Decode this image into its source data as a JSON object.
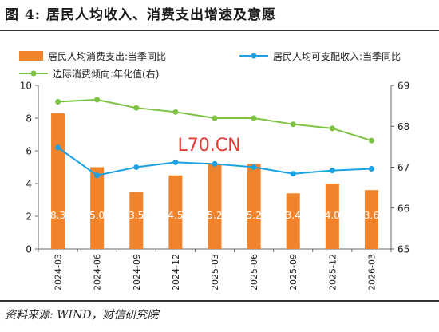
{
  "figure": {
    "title": "图 4:  居民人均收入、消费支出增速及意愿",
    "source": "资料来源: WIND，财信研究院",
    "watermark": "L70.CN"
  },
  "chart_data": {
    "type": "bar",
    "categories": [
      "2024-03",
      "2024-06",
      "2024-09",
      "2024-12",
      "2025-03",
      "2025-06",
      "2025-09",
      "2025-12",
      "2026-03"
    ],
    "series": [
      {
        "name": "居民人均消费支出:当季同比",
        "type": "bar",
        "axis": "left",
        "color": "#F0842C",
        "values": [
          8.3,
          5.0,
          3.5,
          4.5,
          5.2,
          5.2,
          3.4,
          4.0,
          3.6
        ],
        "labels": [
          "8.3",
          "5.0",
          "3.5",
          "4.5",
          "5.2",
          "5.2",
          "3.4",
          "4.0",
          "3.6"
        ]
      },
      {
        "name": "居民人均可支配收入:当季同比",
        "type": "line",
        "axis": "left",
        "color": "#1BA1E2",
        "values": [
          6.2,
          4.5,
          5.0,
          5.3,
          5.2,
          5.0,
          4.6,
          4.8,
          4.9
        ]
      },
      {
        "name": "边际消费倾向:年化值(右)",
        "type": "line",
        "axis": "right",
        "color": "#7DC242",
        "values": [
          68.6,
          68.65,
          68.45,
          68.35,
          68.2,
          68.2,
          68.05,
          67.95,
          67.65
        ]
      }
    ],
    "ylim_left": [
      0,
      10
    ],
    "yticks_left": [
      "0",
      "2",
      "4",
      "6",
      "8",
      "10"
    ],
    "ylim_right": [
      65,
      69
    ],
    "yticks_right": [
      "65",
      "66",
      "67",
      "68",
      "69"
    ],
    "legend_position": "top",
    "grid": false
  }
}
